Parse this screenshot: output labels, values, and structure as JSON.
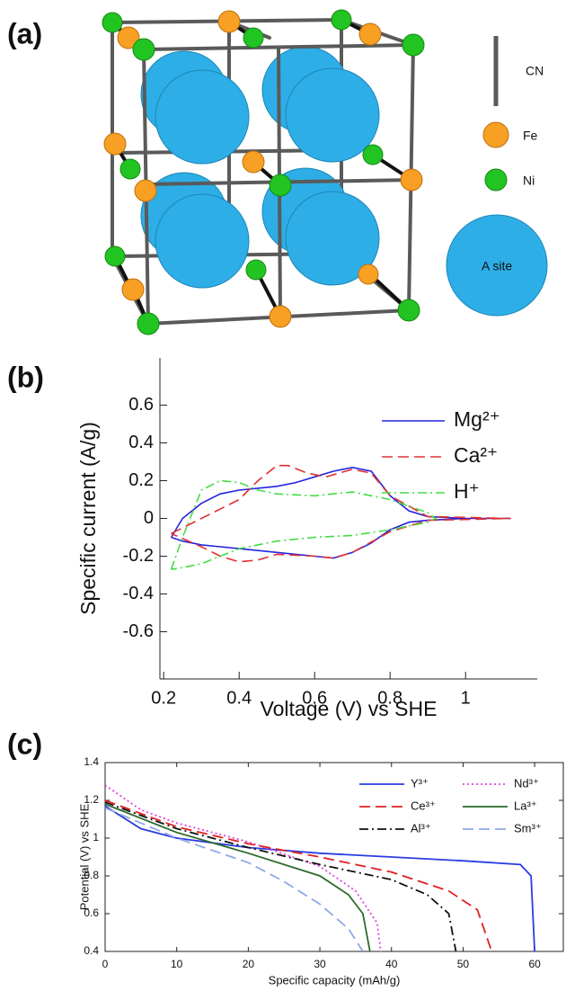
{
  "diagram": {
    "panel_label": "(a)",
    "legend": {
      "bond": "CN",
      "atoms": [
        "Fe",
        "Ni"
      ],
      "site": "A site"
    }
  },
  "chart_data": [
    {
      "type": "line",
      "panel_label": "(b)",
      "x_label": "Voltage (V) vs SHE",
      "y_label": "Specific current (A/g)",
      "xlim": [
        0.19,
        1.19
      ],
      "ylim": [
        -0.85,
        0.85
      ],
      "xticks": [
        0.2,
        0.4,
        0.6,
        0.8,
        1
      ],
      "yticks": [
        -0.6,
        -0.4,
        -0.2,
        0,
        0.2,
        0.4,
        0.6
      ],
      "legend": "upper right",
      "series": [
        {
          "name": "Mg²⁺",
          "color": "#2424e0",
          "style": "solid",
          "x": [
            0.22,
            0.25,
            0.3,
            0.35,
            0.4,
            0.45,
            0.5,
            0.55,
            0.6,
            0.65,
            0.7,
            0.75,
            0.8,
            0.85,
            0.9,
            1.0,
            1.12,
            1.0,
            0.9,
            0.85,
            0.8,
            0.75,
            0.7,
            0.65,
            0.6,
            0.55,
            0.5,
            0.45,
            0.4,
            0.35,
            0.3,
            0.25,
            0.22
          ],
          "values": [
            -0.1,
            0.0,
            0.08,
            0.13,
            0.15,
            0.16,
            0.17,
            0.19,
            0.22,
            0.25,
            0.27,
            0.25,
            0.12,
            0.04,
            0.01,
            0.0,
            0.0,
            0.0,
            -0.01,
            -0.02,
            -0.06,
            -0.13,
            -0.18,
            -0.21,
            -0.2,
            -0.19,
            -0.18,
            -0.17,
            -0.16,
            -0.15,
            -0.14,
            -0.12,
            -0.1
          ]
        },
        {
          "name": "Ca²⁺",
          "color": "#e03030",
          "style": "dashed",
          "x": [
            0.22,
            0.3,
            0.4,
            0.45,
            0.5,
            0.53,
            0.58,
            0.63,
            0.7,
            0.75,
            0.8,
            0.9,
            1.12,
            0.9,
            0.8,
            0.7,
            0.65,
            0.6,
            0.5,
            0.45,
            0.4,
            0.35,
            0.3,
            0.22
          ],
          "values": [
            -0.08,
            0.0,
            0.1,
            0.2,
            0.28,
            0.28,
            0.24,
            0.22,
            0.26,
            0.24,
            0.12,
            0.01,
            0.0,
            -0.01,
            -0.07,
            -0.18,
            -0.21,
            -0.2,
            -0.19,
            -0.22,
            -0.23,
            -0.2,
            -0.15,
            -0.08
          ]
        },
        {
          "name": "H⁺",
          "color": "#44dd44",
          "style": "dashdot",
          "x": [
            0.22,
            0.25,
            0.3,
            0.35,
            0.4,
            0.45,
            0.5,
            0.6,
            0.7,
            0.8,
            0.9,
            0.92,
            0.9,
            0.8,
            0.7,
            0.6,
            0.5,
            0.4,
            0.35,
            0.3,
            0.25,
            0.22
          ],
          "values": [
            -0.27,
            -0.1,
            0.15,
            0.2,
            0.19,
            0.15,
            0.13,
            0.12,
            0.14,
            0.1,
            0.03,
            0.0,
            -0.02,
            -0.06,
            -0.09,
            -0.1,
            -0.12,
            -0.16,
            -0.2,
            -0.24,
            -0.26,
            -0.27
          ]
        }
      ]
    },
    {
      "type": "line",
      "panel_label": "(c)",
      "x_label": "Specific capacity (mAh/g)",
      "y_label": "Potential (V) vs SHE",
      "xlim": [
        0,
        64
      ],
      "ylim": [
        0.4,
        1.4
      ],
      "xticks": [
        0,
        10,
        20,
        30,
        40,
        50,
        60
      ],
      "yticks": [
        0.4,
        0.6,
        0.8,
        1,
        1.2,
        1.4
      ],
      "legend": "upper right",
      "series": [
        {
          "name": "Y³⁺",
          "color": "#2a3de0",
          "style": "solid",
          "x": [
            0,
            5,
            10,
            20,
            30,
            40,
            50,
            58,
            59.5,
            60
          ],
          "values": [
            1.17,
            1.05,
            1.0,
            0.95,
            0.92,
            0.9,
            0.88,
            0.86,
            0.8,
            0.4
          ]
        },
        {
          "name": "Nd³⁺",
          "color": "#e040e0",
          "style": "dotted",
          "x": [
            0,
            5,
            10,
            20,
            30,
            35,
            38,
            38.5
          ],
          "values": [
            1.28,
            1.15,
            1.08,
            0.98,
            0.85,
            0.72,
            0.55,
            0.4
          ]
        },
        {
          "name": "Ce³⁺",
          "color": "#e02020",
          "style": "dashed",
          "x": [
            0,
            10,
            20,
            30,
            40,
            48,
            52,
            54
          ],
          "values": [
            1.2,
            1.06,
            0.97,
            0.9,
            0.82,
            0.72,
            0.62,
            0.4
          ]
        },
        {
          "name": "La³⁺",
          "color": "#2a6a2a",
          "style": "solid",
          "x": [
            0,
            10,
            20,
            30,
            34,
            36,
            37
          ],
          "values": [
            1.18,
            1.03,
            0.92,
            0.8,
            0.7,
            0.6,
            0.4
          ]
        },
        {
          "name": "Al³⁺",
          "color": "#111111",
          "style": "dashdot",
          "x": [
            0,
            10,
            20,
            30,
            40,
            45,
            48,
            49
          ],
          "values": [
            1.19,
            1.05,
            0.95,
            0.86,
            0.78,
            0.7,
            0.6,
            0.4
          ]
        },
        {
          "name": "Sm³⁺",
          "color": "#8fa8e8",
          "style": "dashed",
          "x": [
            0,
            10,
            20,
            25,
            30,
            34,
            36
          ],
          "values": [
            1.16,
            1.0,
            0.87,
            0.77,
            0.65,
            0.52,
            0.4
          ]
        }
      ]
    }
  ]
}
